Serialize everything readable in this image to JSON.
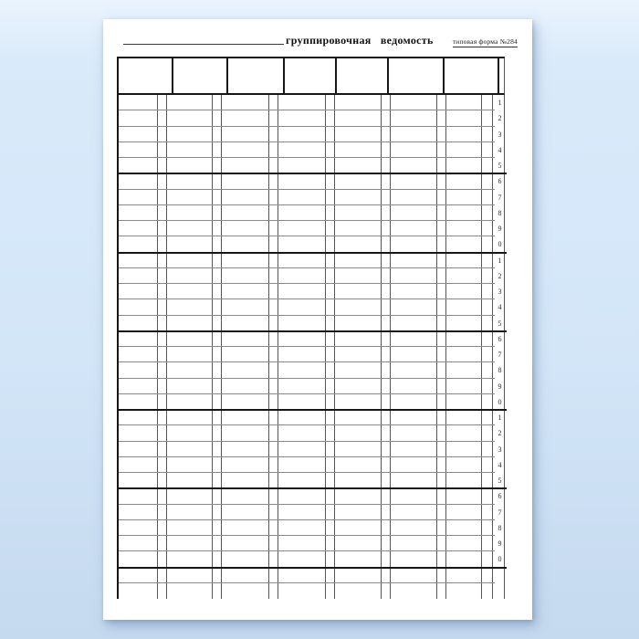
{
  "document": {
    "title": "группировочная ведомость",
    "form_label": "типовая форма №284"
  },
  "table": {
    "header_column_widths": [
      58,
      60,
      62,
      57,
      57,
      61,
      60,
      10
    ],
    "body_columns": [
      {
        "wide": 43,
        "narrow": 10
      },
      {
        "wide": 50,
        "narrow": 10
      },
      {
        "wide": 52,
        "narrow": 10
      },
      {
        "wide": 52,
        "narrow": 10
      },
      {
        "wide": 51,
        "narrow": 10
      },
      {
        "wide": 51,
        "narrow": 10
      },
      {
        "wide": 39,
        "narrow": 12
      }
    ],
    "number_gutter_width": 15,
    "row_numbers": [
      "1",
      "2",
      "3",
      "4",
      "5",
      "6",
      "7",
      "8",
      "9",
      "0",
      "1",
      "2",
      "3",
      "4",
      "5",
      "6",
      "7",
      "8",
      "9",
      "0",
      "1",
      "2",
      "3",
      "4",
      "5",
      "6",
      "7",
      "8",
      "9",
      "0"
    ],
    "group_size": 5,
    "trailing_unnumbered_rows": 2
  },
  "colors": {
    "paper": "#ffffff",
    "thick_line": "#161616",
    "thin_horizontal_line": "#8a8a8a",
    "thin_vertical_line": "#565656",
    "background_top": "#eaf3fd",
    "background_bottom": "#c5d9ef"
  }
}
